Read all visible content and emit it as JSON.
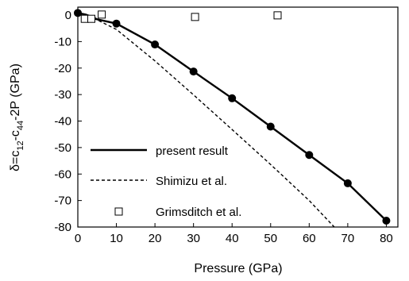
{
  "chart_data": {
    "type": "line",
    "title": "",
    "xlabel": "Pressure (GPa)",
    "ylabel_parts": [
      "δ=c",
      "12",
      "-c",
      "44",
      "-2P (GPa)"
    ],
    "xlim": [
      0,
      83
    ],
    "ylim": [
      -80,
      3
    ],
    "x_ticks": [
      0,
      10,
      20,
      30,
      40,
      50,
      60,
      70,
      80
    ],
    "y_ticks": [
      0,
      -10,
      -20,
      -30,
      -40,
      -50,
      -60,
      -70,
      -80
    ],
    "legend_position": "lower-left",
    "series": [
      {
        "name": "present result",
        "style": "solid-line-with-filled-circles",
        "color": "#000000",
        "x": [
          0,
          1,
          2,
          3,
          4,
          5,
          10,
          20,
          30,
          40,
          50,
          60,
          70,
          80
        ],
        "y": [
          0.8,
          0.5,
          0.2,
          -0.3,
          -0.9,
          -1.6,
          -3.2,
          -11.1,
          -21.3,
          -31.4,
          -42.1,
          -52.8,
          -63.5,
          -77.6
        ],
        "markers_at": [
          0,
          10,
          20,
          30,
          40,
          50,
          60,
          70,
          80
        ]
      },
      {
        "name": "Shimizu et al.",
        "style": "dashed-line",
        "color": "#000000",
        "x": [
          0,
          5,
          10,
          20,
          30,
          40,
          50,
          60,
          66.5
        ],
        "y": [
          0.8,
          -1.8,
          -5.4,
          -17.3,
          -30.1,
          -43.2,
          -56.4,
          -70,
          -80
        ]
      },
      {
        "name": "Grimsditch et al.",
        "style": "open-squares",
        "color": "#000000",
        "x": [
          1.8,
          3.5,
          6.2,
          30.4,
          51.8
        ],
        "y": [
          -1.4,
          -1.4,
          0.2,
          -0.7,
          -0.1
        ]
      }
    ]
  }
}
